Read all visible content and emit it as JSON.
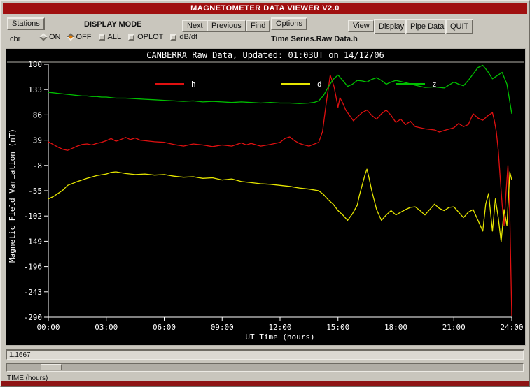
{
  "window": {
    "title": "MAGNETOMETER DATA VIEWER V2.0"
  },
  "toolbar": {
    "stations_label": "Stations",
    "display_mode_label": "DISPLAY MODE",
    "station_code": "cbr",
    "toggles": [
      {
        "label": "ON",
        "selected": false
      },
      {
        "label": "OFF",
        "selected": true
      },
      {
        "label": "ALL",
        "selected": false
      },
      {
        "label": "OPLOT",
        "selected": false
      },
      {
        "label": "dB/dt",
        "selected": false
      }
    ],
    "next_label": "Next",
    "previous_label": "Previous",
    "find_label": "Find",
    "options_label": "Options",
    "series_path_label": "Time Series.Raw Data.h",
    "view_label": "View",
    "display_label": "Display",
    "pipe_data_label": "Pipe Data",
    "quit_label": "QUIT"
  },
  "footer": {
    "value": "1.1667",
    "time_label": "TIME (hours)"
  },
  "chart_data": {
    "type": "line",
    "title": "CANBERRA Raw Data, Updated: 01:03UT on 14/12/06",
    "xlabel": "UT Time (hours)",
    "ylabel": "Magnetic Field Variation (nT)",
    "ylim": [
      -290,
      180
    ],
    "yticks": [
      180,
      133,
      86,
      39,
      -8,
      -55,
      -102,
      -149,
      -196,
      -243,
      -290
    ],
    "xlim": [
      0,
      24
    ],
    "xticks": [
      "00:00",
      "03:00",
      "06:00",
      "09:00",
      "12:00",
      "15:00",
      "18:00",
      "21:00",
      "24:00"
    ],
    "grid": false,
    "legend_position": "top-inside",
    "series": [
      {
        "name": "h",
        "color": "#e01010",
        "x": [
          0,
          0.25,
          0.5,
          0.75,
          1,
          1.25,
          1.5,
          1.75,
          2,
          2.25,
          2.5,
          2.75,
          3,
          3.25,
          3.5,
          3.75,
          4,
          4.25,
          4.5,
          4.75,
          5,
          5.5,
          6,
          6.5,
          7,
          7.5,
          8,
          8.5,
          9,
          9.5,
          10,
          10.25,
          10.5,
          11,
          11.5,
          12,
          12.25,
          12.5,
          12.75,
          13,
          13.25,
          13.5,
          14,
          14.2,
          14.4,
          14.5,
          14.6,
          14.8,
          15,
          15.1,
          15.25,
          15.4,
          15.6,
          15.8,
          16,
          16.25,
          16.5,
          16.75,
          17,
          17.25,
          17.5,
          17.75,
          18,
          18.25,
          18.5,
          18.75,
          19,
          19.5,
          20,
          20.25,
          20.5,
          21,
          21.25,
          21.5,
          21.75,
          22,
          22.25,
          22.5,
          22.75,
          23,
          23.1,
          23.2,
          23.3,
          23.4,
          23.5,
          23.6,
          23.7,
          23.8,
          23.9,
          24
        ],
        "values": [
          36,
          31,
          26,
          22,
          20,
          24,
          28,
          31,
          32,
          30,
          33,
          35,
          38,
          42,
          37,
          40,
          44,
          40,
          43,
          39,
          38,
          36,
          35,
          31,
          28,
          32,
          30,
          27,
          30,
          28,
          34,
          30,
          33,
          28,
          31,
          35,
          42,
          45,
          38,
          33,
          30,
          28,
          35,
          55,
          110,
          135,
          160,
          138,
          100,
          118,
          108,
          95,
          85,
          75,
          82,
          90,
          95,
          85,
          78,
          88,
          95,
          85,
          72,
          78,
          68,
          74,
          64,
          60,
          58,
          54,
          57,
          62,
          70,
          64,
          68,
          88,
          80,
          76,
          84,
          90,
          75,
          55,
          20,
          -30,
          -80,
          -120,
          -60,
          -8,
          -100,
          -288
        ]
      },
      {
        "name": "d",
        "color": "#e6e600",
        "x": [
          0,
          0.25,
          0.5,
          0.75,
          1,
          1.5,
          2,
          2.5,
          3,
          3.25,
          3.5,
          4,
          4.5,
          5,
          5.5,
          6,
          6.5,
          7,
          7.5,
          8,
          8.5,
          9,
          9.5,
          10,
          10.5,
          11,
          11.5,
          12,
          12.5,
          13,
          13.5,
          14,
          14.25,
          14.5,
          14.75,
          15,
          15.25,
          15.5,
          15.75,
          16,
          16.1,
          16.25,
          16.4,
          16.5,
          16.6,
          16.75,
          17,
          17.25,
          17.5,
          17.75,
          18,
          18.25,
          18.5,
          18.75,
          19,
          19.25,
          19.5,
          19.75,
          20,
          20.25,
          20.5,
          20.75,
          21,
          21.25,
          21.5,
          21.75,
          22,
          22.25,
          22.5,
          22.65,
          22.8,
          23,
          23.15,
          23.3,
          23.45,
          23.6,
          23.75,
          23.9,
          24
        ],
        "values": [
          -70,
          -66,
          -60,
          -54,
          -45,
          -38,
          -32,
          -27,
          -24,
          -21,
          -20,
          -23,
          -25,
          -24,
          -26,
          -25,
          -28,
          -30,
          -29,
          -32,
          -31,
          -35,
          -33,
          -38,
          -40,
          -42,
          -43,
          -45,
          -47,
          -50,
          -52,
          -55,
          -62,
          -72,
          -80,
          -92,
          -100,
          -110,
          -98,
          -82,
          -65,
          -45,
          -25,
          -15,
          -30,
          -55,
          -90,
          -110,
          -100,
          -92,
          -100,
          -95,
          -90,
          -86,
          -85,
          -92,
          -100,
          -90,
          -80,
          -88,
          -92,
          -86,
          -85,
          -95,
          -105,
          -95,
          -90,
          -110,
          -130,
          -80,
          -60,
          -130,
          -70,
          -105,
          -150,
          -90,
          -120,
          -20,
          -35
        ]
      },
      {
        "name": "z",
        "color": "#00c000",
        "x": [
          0,
          0.25,
          0.5,
          0.75,
          1,
          1.25,
          1.5,
          1.75,
          2,
          2.25,
          2.5,
          2.75,
          3,
          3.5,
          4,
          4.5,
          5,
          5.5,
          6,
          6.5,
          7,
          7.5,
          8,
          8.5,
          9,
          9.5,
          10,
          10.5,
          11,
          11.5,
          12,
          12.5,
          13,
          13.5,
          13.75,
          14,
          14.25,
          14.5,
          14.75,
          15,
          15.25,
          15.5,
          15.75,
          16,
          16.25,
          16.5,
          16.75,
          17,
          17.25,
          17.5,
          17.75,
          18,
          18.25,
          18.5,
          19,
          19.5,
          20,
          20.5,
          21,
          21.25,
          21.5,
          21.75,
          22,
          22.25,
          22.5,
          22.75,
          23,
          23.25,
          23.5,
          23.75,
          24
        ],
        "values": [
          128,
          127,
          126,
          125,
          124,
          123,
          122,
          121,
          121,
          120,
          120,
          119,
          119,
          117,
          117,
          116,
          115,
          114,
          113,
          112,
          111,
          112,
          110,
          111,
          110,
          109,
          110,
          109,
          108,
          109,
          108,
          108,
          107,
          108,
          109,
          112,
          122,
          138,
          152,
          160,
          150,
          139,
          143,
          150,
          149,
          147,
          152,
          155,
          150,
          143,
          147,
          150,
          148,
          146,
          141,
          137,
          138,
          136,
          147,
          143,
          140,
          150,
          162,
          174,
          178,
          167,
          153,
          159,
          165,
          143,
          88
        ]
      }
    ]
  }
}
